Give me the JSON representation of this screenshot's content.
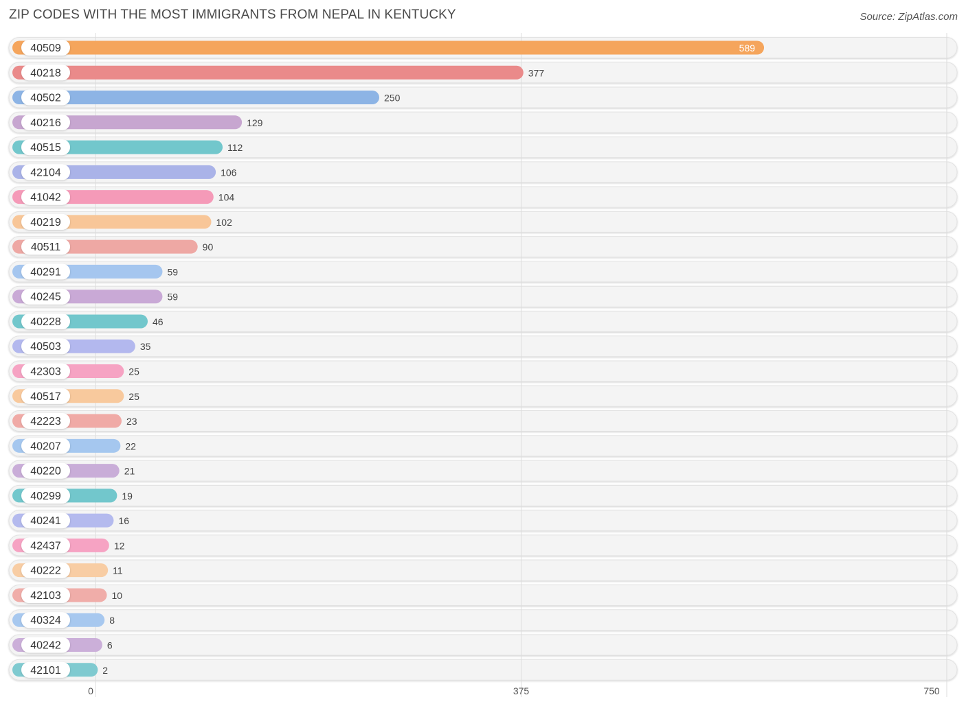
{
  "title": "ZIP CODES WITH THE MOST IMMIGRANTS FROM NEPAL IN KENTUCKY",
  "source": "Source: ZipAtlas.com",
  "chart_data": {
    "type": "bar",
    "orientation": "horizontal",
    "title": "ZIP CODES WITH THE MOST IMMIGRANTS FROM NEPAL IN KENTUCKY",
    "xlim": [
      0,
      750
    ],
    "ticks": [
      0,
      375,
      750
    ],
    "grid": true,
    "categories": [
      "40509",
      "40218",
      "40502",
      "40216",
      "40515",
      "42104",
      "41042",
      "40219",
      "40511",
      "40291",
      "40245",
      "40228",
      "40503",
      "42303",
      "40517",
      "42223",
      "40207",
      "40220",
      "40299",
      "40241",
      "42437",
      "40222",
      "42103",
      "40324",
      "40242",
      "42101"
    ],
    "values": [
      589,
      377,
      250,
      129,
      112,
      106,
      104,
      102,
      90,
      59,
      59,
      46,
      35,
      25,
      25,
      23,
      22,
      21,
      19,
      16,
      12,
      11,
      10,
      8,
      6,
      2
    ],
    "colors": [
      "#f5a55c",
      "#ea8a8a",
      "#8db4e5",
      "#c7a6d0",
      "#72c7cc",
      "#aab3e8",
      "#f59ab8",
      "#f8c698",
      "#eea8a4",
      "#a5c6ef",
      "#c9a9d6",
      "#72c7cc",
      "#b3b8ee",
      "#f6a3c3",
      "#f8c99d",
      "#f0aaa6",
      "#a5c7ef",
      "#c9add8",
      "#72c7cc",
      "#b4baee",
      "#f6a3c3",
      "#f8cda4",
      "#f0ada9",
      "#a7c8ef",
      "#cbafd9",
      "#7fcad0"
    ]
  }
}
